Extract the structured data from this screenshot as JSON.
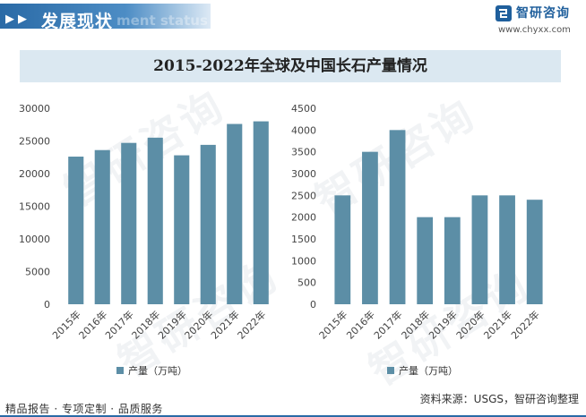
{
  "header": {
    "section_title": "发展现状",
    "section_subtitle": "ment status",
    "brand_name": "智研咨询",
    "brand_url": "www.chyxx.com",
    "watermark": "智研咨询"
  },
  "colors": {
    "bar": "#5c8ea6",
    "accent": "#2a6aa6"
  },
  "chart_data": [
    {
      "type": "bar",
      "title": "2015-2022年全球及中国长石产量情况",
      "categories": [
        "2015年",
        "2016年",
        "2017年",
        "2018年",
        "2019年",
        "2020年",
        "2021年",
        "2022年"
      ],
      "series": [
        {
          "name": "产量（万吨）",
          "values": [
            22600,
            23600,
            24700,
            25500,
            22800,
            24400,
            27600,
            28000
          ]
        }
      ],
      "ylim": [
        0,
        30000
      ],
      "yticks": [
        0,
        5000,
        10000,
        15000,
        20000,
        25000,
        30000
      ],
      "legend": "bottom"
    },
    {
      "type": "bar",
      "categories": [
        "2015年",
        "2016年",
        "2017年",
        "2018年",
        "2019年",
        "2020年",
        "2021年",
        "2022年"
      ],
      "series": [
        {
          "name": "产量（万吨）",
          "values": [
            2500,
            3500,
            4000,
            2000,
            2000,
            2500,
            2500,
            2400
          ]
        }
      ],
      "ylim": [
        0,
        4500
      ],
      "yticks": [
        0,
        500,
        1000,
        1500,
        2000,
        2500,
        3000,
        3500,
        4000,
        4500
      ],
      "legend": "bottom"
    }
  ],
  "footer": {
    "left": "精品报告 · 专项定制 · 品质服务",
    "source": "资料来源：USGS，智研咨询整理"
  }
}
